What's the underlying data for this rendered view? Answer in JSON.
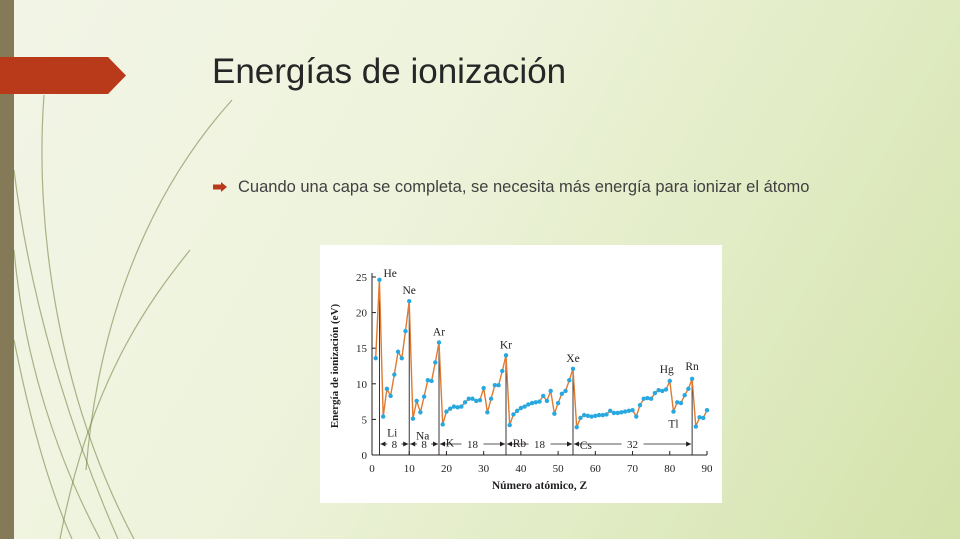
{
  "slide": {
    "title": "Energías de ionización",
    "bullet": "Cuando una capa se completa, se necesita más energía para ionizar el átomo"
  },
  "colors": {
    "accent": "#b83a1b",
    "strip": "#857a57",
    "line": "#e07a30",
    "points": "#29a8e0"
  },
  "chart_data": {
    "type": "line",
    "xlabel": "Número atómico, Z",
    "ylabel": "Energía de ionización (eV)",
    "xlim": [
      0,
      90
    ],
    "ylim": [
      0,
      25
    ],
    "xticks": [
      0,
      10,
      20,
      30,
      40,
      50,
      60,
      70,
      80,
      90
    ],
    "yticks": [
      0,
      5,
      10,
      15,
      20,
      25
    ],
    "x": [
      1,
      2,
      3,
      4,
      5,
      6,
      7,
      8,
      9,
      10,
      11,
      12,
      13,
      14,
      15,
      16,
      17,
      18,
      19,
      20,
      21,
      22,
      23,
      24,
      25,
      26,
      27,
      28,
      29,
      30,
      31,
      32,
      33,
      34,
      35,
      36,
      37,
      38,
      39,
      40,
      41,
      42,
      43,
      44,
      45,
      46,
      47,
      48,
      49,
      50,
      51,
      52,
      53,
      54,
      55,
      56,
      57,
      58,
      59,
      60,
      61,
      62,
      63,
      64,
      65,
      66,
      67,
      68,
      69,
      70,
      71,
      72,
      73,
      74,
      75,
      76,
      77,
      78,
      79,
      80,
      81,
      82,
      83,
      84,
      85,
      86,
      87,
      88,
      89,
      90
    ],
    "y": [
      13.6,
      24.6,
      5.4,
      9.3,
      8.3,
      11.3,
      14.5,
      13.6,
      17.4,
      21.6,
      5.1,
      7.6,
      6.0,
      8.2,
      10.5,
      10.4,
      13.0,
      15.8,
      4.3,
      6.1,
      6.5,
      6.8,
      6.7,
      6.8,
      7.4,
      7.9,
      7.9,
      7.6,
      7.7,
      9.4,
      6.0,
      7.9,
      9.8,
      9.8,
      11.8,
      14.0,
      4.2,
      5.7,
      6.2,
      6.6,
      6.8,
      7.1,
      7.3,
      7.4,
      7.5,
      8.3,
      7.6,
      9.0,
      5.8,
      7.3,
      8.6,
      9.0,
      10.5,
      12.1,
      3.9,
      5.2,
      5.6,
      5.5,
      5.4,
      5.5,
      5.6,
      5.6,
      5.7,
      6.2,
      5.9,
      5.9,
      6.0,
      6.1,
      6.2,
      6.3,
      5.4,
      7.0,
      7.9,
      8.0,
      7.9,
      8.7,
      9.1,
      9.0,
      9.2,
      10.4,
      6.1,
      7.4,
      7.3,
      8.4,
      9.3,
      10.7,
      4.0,
      5.3,
      5.2,
      6.3
    ],
    "element_labels": [
      {
        "text": "He",
        "x": 2,
        "y": 24.6
      },
      {
        "text": "Ne",
        "x": 10,
        "y": 21.6
      },
      {
        "text": "Ar",
        "x": 18,
        "y": 15.8
      },
      {
        "text": "Kr",
        "x": 36,
        "y": 14.0
      },
      {
        "text": "Xe",
        "x": 54,
        "y": 12.1
      },
      {
        "text": "Hg",
        "x": 80,
        "y": 10.4
      },
      {
        "text": "Rn",
        "x": 86,
        "y": 10.7
      },
      {
        "text": "Li",
        "x": 3,
        "y": 5.4
      },
      {
        "text": "Na",
        "x": 11,
        "y": 5.1
      },
      {
        "text": "K",
        "x": 19,
        "y": 4.3
      },
      {
        "text": "Rb",
        "x": 37,
        "y": 4.2
      },
      {
        "text": "Cs",
        "x": 55,
        "y": 3.9
      },
      {
        "text": "Tl",
        "x": 81,
        "y": 6.1
      }
    ],
    "period_spans": [
      {
        "label": "8",
        "from": 2,
        "to": 10
      },
      {
        "label": "8",
        "from": 10,
        "to": 18
      },
      {
        "label": "18",
        "from": 18,
        "to": 36
      },
      {
        "label": "18",
        "from": 36,
        "to": 54
      },
      {
        "label": "32",
        "from": 54,
        "to": 86
      }
    ],
    "grid": false
  }
}
